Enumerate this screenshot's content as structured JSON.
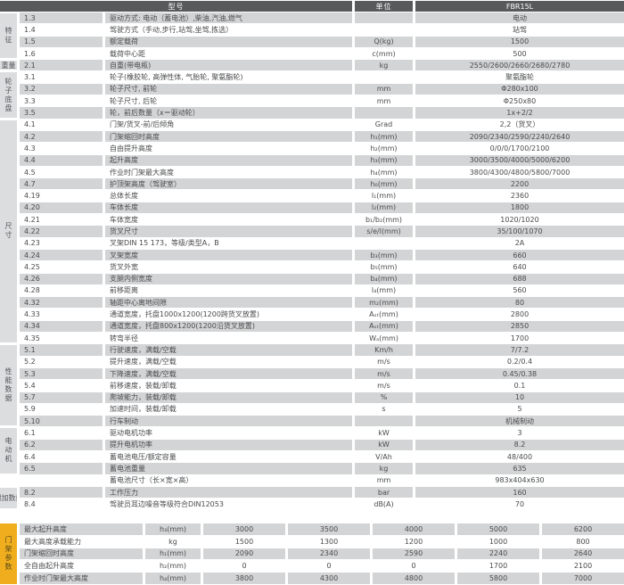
{
  "colors": {
    "header_bg": "#58595b",
    "stripe_gray": "#d3d4d5",
    "category_strip_gray": "#dcdddf",
    "mast_strip_orange": "#f0ae1f",
    "text": "#4a4b4d"
  },
  "header": {
    "model": "型号",
    "unit": "单位",
    "value": "FBR15L"
  },
  "categories": [
    {
      "label": "特征",
      "from": 0,
      "to": 3,
      "vertical": true
    },
    {
      "label": "重量",
      "from": 4,
      "to": 4,
      "vertical": false
    },
    {
      "label": "轮子底盘",
      "from": 5,
      "to": 8,
      "vertical": true
    },
    {
      "label": "尺寸",
      "from": 9,
      "to": 27,
      "vertical": true
    },
    {
      "label": "性能数据",
      "from": 28,
      "to": 34,
      "vertical": true
    },
    {
      "label": "电动机",
      "from": 35,
      "to": 38,
      "vertical": true
    },
    {
      "label": "附加数据",
      "from": 40,
      "to": 41,
      "vertical": false
    }
  ],
  "main_table": {
    "rows": [
      {
        "num": "1.3",
        "label": "驱动方式: 电动（蓄电池）,柴油,汽油,燃气",
        "unit": "",
        "value": "电动"
      },
      {
        "num": "1.4",
        "label": "驾驶方式（手动,步行,站驾,坐驾,拣选）",
        "unit": "",
        "value": "站驾"
      },
      {
        "num": "1.5",
        "label": "额定载荷",
        "unit": "Q(kg)",
        "value": "1500"
      },
      {
        "num": "1.6",
        "label": "载荷中心距",
        "unit": "c(mm)",
        "value": "500"
      },
      {
        "num": "2.1",
        "label": "自重(带电瓶)",
        "unit": "kg",
        "value": "2550/2600/2660/2680/2780"
      },
      {
        "num": "3.1",
        "label": "轮子(橡胶轮, 高弹性体, 气胎轮, 聚氨酯轮)",
        "unit": "",
        "value": "聚氨酯轮"
      },
      {
        "num": "3.2",
        "label": "轮子尺寸, 前轮",
        "unit": "mm",
        "value": "Φ280x100"
      },
      {
        "num": "3.3",
        "label": "轮子尺寸, 后轮",
        "unit": "mm",
        "value": "Φ250x80"
      },
      {
        "num": "3.5",
        "label": "轮，前后数量（x＝驱动轮）",
        "unit": "",
        "value": "1x+2/2"
      },
      {
        "num": "4.1",
        "label": "门架/货叉-前/后倾角",
        "unit": "Grad",
        "value": "2,2（货叉）"
      },
      {
        "num": "4.2",
        "label": "门架缩回时高度",
        "unit": "h₁(mm)",
        "value": "2090/2340/2590/2240/2640"
      },
      {
        "num": "4.3",
        "label": "自由提升高度",
        "unit": "h₂(mm)",
        "value": "0/0/0/1700/2100"
      },
      {
        "num": "4.4",
        "label": "起升高度",
        "unit": "h₃(mm)",
        "value": "3000/3500/4000/5000/6200"
      },
      {
        "num": "4.5",
        "label": "作业时门架最大高度",
        "unit": "h₄(mm)",
        "value": "3800/4300/4800/5800/7000"
      },
      {
        "num": "4.7",
        "label": "护顶架高度（驾驶室）",
        "unit": "h₆(mm)",
        "value": "2200"
      },
      {
        "num": "4.19",
        "label": "总体长度",
        "unit": "l₁(mm)",
        "value": "2360"
      },
      {
        "num": "4.20",
        "label": "车体长度",
        "unit": "l₂(mm)",
        "value": "1800"
      },
      {
        "num": "4.21",
        "label": "车体宽度",
        "unit": "b₁/b₂(mm)",
        "value": "1020/1020"
      },
      {
        "num": "4.22",
        "label": "货叉尺寸",
        "unit": "s/e/l(mm)",
        "value": "35/100/1070"
      },
      {
        "num": "4.23",
        "label": "叉架DIN 15 173，等级/类型A，B",
        "unit": "",
        "value": "2A"
      },
      {
        "num": "4.24",
        "label": "叉架宽度",
        "unit": "b₃(mm)",
        "value": "660"
      },
      {
        "num": "4.25",
        "label": "货叉外宽",
        "unit": "b₅(mm)",
        "value": "640"
      },
      {
        "num": "4.26",
        "label": "支腿内侧宽度",
        "unit": "b₄(mm)",
        "value": "688"
      },
      {
        "num": "4.28",
        "label": "前移距离",
        "unit": "l₄(mm)",
        "value": "560"
      },
      {
        "num": "4.32",
        "label": "轴距中心离地间隙",
        "unit": "m₂(mm)",
        "value": "80"
      },
      {
        "num": "4.33",
        "label": "通道宽度，托盘1000x1200(1200跨货叉放置)",
        "unit": "Aₛₜ(mm)",
        "value": "2800"
      },
      {
        "num": "4.34",
        "label": "通道宽度，托盘800x1200(1200沿货叉放置)",
        "unit": "Aₛₜ(mm)",
        "value": "2850"
      },
      {
        "num": "4.35",
        "label": "转弯半径",
        "unit": "Wₐ(mm)",
        "value": "1700"
      },
      {
        "num": "5.1",
        "label": "行驶速度，满载/空载",
        "unit": "Km/h",
        "value": "7/7.2"
      },
      {
        "num": "5.2",
        "label": "提升速度，满载/空载",
        "unit": "m/s",
        "value": "0.2/0.4"
      },
      {
        "num": "5.3",
        "label": "下降速度，满载/空载",
        "unit": "m/s",
        "value": "0.45/0.38"
      },
      {
        "num": "5.4",
        "label": "前移速度，装载/卸载",
        "unit": "m/s",
        "value": "0.1"
      },
      {
        "num": "5.7",
        "label": "爬坡能力，装载/卸载",
        "unit": "%",
        "value": "10"
      },
      {
        "num": "5.9",
        "label": "加速时间，装载/卸载",
        "unit": "s",
        "value": "5"
      },
      {
        "num": "5.10",
        "label": "行车制动",
        "unit": "",
        "value": "机械制动"
      },
      {
        "num": "6.1",
        "label": "驱动电机功率",
        "unit": "kW",
        "value": "3"
      },
      {
        "num": "6.2",
        "label": "提升电机功率",
        "unit": "kW",
        "value": "8.2"
      },
      {
        "num": "6.4",
        "label": "蓄电池电压/额定容量",
        "unit": "V/Ah",
        "value": "48/400"
      },
      {
        "num": "6.5",
        "label": "蓄电池重量",
        "unit": "kg",
        "value": "635"
      },
      {
        "num": "",
        "label": "蓄电池尺寸（长×宽×高）",
        "unit": "mm",
        "value": "983x404x630"
      },
      {
        "num": "8.2",
        "label": "工作压力",
        "unit": "bar",
        "value": "160"
      },
      {
        "num": "8.4",
        "label": "驾驶员耳边噪音等级符合DIN12053",
        "unit": "dB(A)",
        "value": "70"
      }
    ]
  },
  "mast_section": {
    "label": "门架参数",
    "rows": [
      {
        "label": "最大起升高度",
        "unit": "h₃(mm)",
        "values": [
          "3000",
          "3500",
          "4000",
          "5000",
          "6200"
        ]
      },
      {
        "label": "最大高度承载能力",
        "unit": "kg",
        "values": [
          "1500",
          "1300",
          "1200",
          "1000",
          "800"
        ]
      },
      {
        "label": "门架缩回时高度",
        "unit": "h₁(mm)",
        "values": [
          "2090",
          "2340",
          "2590",
          "2240",
          "2640"
        ]
      },
      {
        "label": "全自由起升高度",
        "unit": "h₂(mm)",
        "values": [
          "0",
          "0",
          "0",
          "1700",
          "2100"
        ]
      },
      {
        "label": "作业时门架最大高度",
        "unit": "h₄(mm)",
        "values": [
          "3800",
          "4300",
          "4800",
          "5800",
          "7000"
        ]
      }
    ]
  }
}
